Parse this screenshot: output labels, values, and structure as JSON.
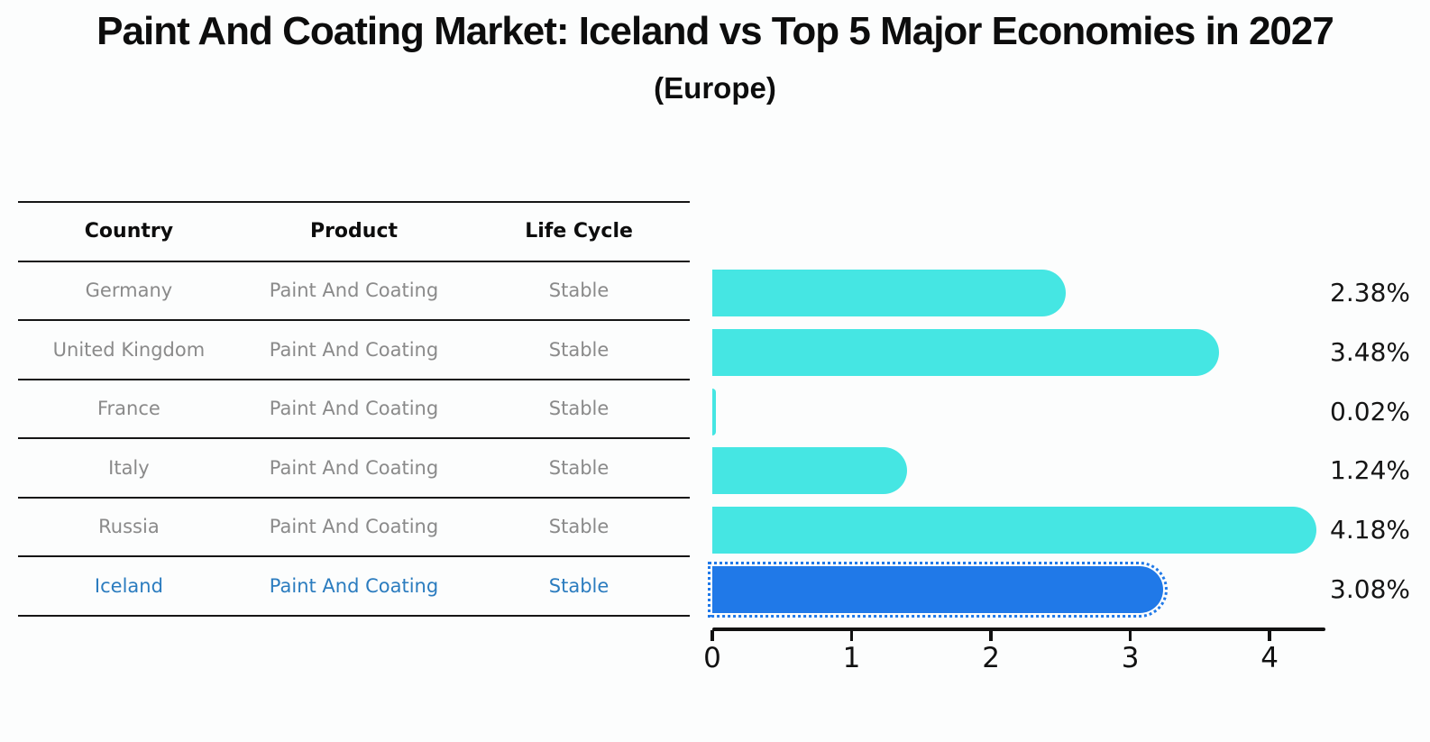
{
  "title": {
    "text": "Paint And Coating Market: Iceland vs Top 5 Major Economies in 2027",
    "subtitle": "(Europe)"
  },
  "table": {
    "headers": {
      "country": "Country",
      "product": "Product",
      "life_cycle": "Life Cycle"
    },
    "rows": [
      {
        "country": "Germany",
        "product": "Paint And Coating",
        "life_cycle": "Stable",
        "highlighted": false
      },
      {
        "country": "United Kingdom",
        "product": "Paint And Coating",
        "life_cycle": "Stable",
        "highlighted": false
      },
      {
        "country": "France",
        "product": "Paint And Coating",
        "life_cycle": "Stable",
        "highlighted": false
      },
      {
        "country": "Italy",
        "product": "Paint And Coating",
        "life_cycle": "Stable",
        "highlighted": false
      },
      {
        "country": "Russia",
        "product": "Paint And Coating",
        "life_cycle": "Stable",
        "highlighted": false
      },
      {
        "country": "Iceland",
        "product": "Paint And Coating",
        "life_cycle": "Stable",
        "highlighted": true
      }
    ]
  },
  "chart_data": {
    "type": "bar",
    "orientation": "horizontal",
    "title": "Paint And Coating Market: Iceland vs Top 5 Major Economies in 2027",
    "subtitle": "(Europe)",
    "categories": [
      "Germany",
      "United Kingdom",
      "France",
      "Italy",
      "Russia",
      "Iceland"
    ],
    "values": [
      2.38,
      3.48,
      0.02,
      1.24,
      4.18,
      3.08
    ],
    "value_labels": [
      "2.38%",
      "3.48%",
      "0.02%",
      "1.24%",
      "4.18%",
      "3.08%"
    ],
    "unit": "%",
    "xlim": [
      0,
      4.4
    ],
    "x_ticks": [
      "0",
      "1",
      "2",
      "3",
      "4"
    ],
    "grid": false,
    "legend": false,
    "bar_color": "#45e6e3",
    "highlight_bar_color": "#2079e8",
    "highlight_index": 5,
    "highlight_border_style": "dotted"
  },
  "colors": {
    "background": "#fcfdfd",
    "title_text": "#0d0d0d",
    "header_text": "#0d0d0d",
    "row_text": "#8a8a8a",
    "highlight_row_text": "#2b7cbf",
    "value_label_text": "#151515",
    "axis": "#111111",
    "table_line": "#161616"
  }
}
